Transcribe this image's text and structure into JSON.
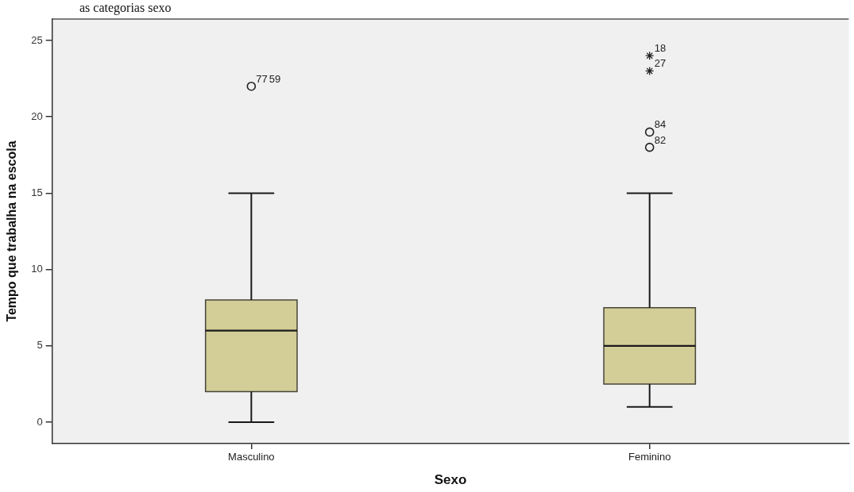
{
  "chart_data": {
    "type": "box",
    "title": "as categorias sexo",
    "xlabel": "Sexo",
    "ylabel": "Tempo que trabalha na escola",
    "categories": [
      "Masculino",
      "Feminino"
    ],
    "series": [
      {
        "color": "#d3cd97",
        "boxes": [
          {
            "low": 0,
            "q1": 2,
            "median": 6,
            "q3": 8,
            "high": 15
          },
          {
            "low": 1,
            "q1": 2.5,
            "median": 5,
            "q3": 7.5,
            "high": 15
          }
        ]
      },
      {
        "type": "scatter",
        "x": [
          "Masculino",
          "Feminino",
          "Feminino"
        ],
        "values": [
          22,
          19,
          18
        ],
        "marker": "circle",
        "color": "#222222"
      },
      {
        "type": "scatter",
        "x": [
          "Feminino",
          "Feminino"
        ],
        "values": [
          24,
          23
        ],
        "marker": "cross",
        "color": "#222222"
      }
    ],
    "ylim": [
      -1.4,
      26.4
    ],
    "yticks": [
      0,
      5,
      10,
      15,
      20,
      25
    ],
    "annotations": [
      {
        "text": "77",
        "x": "Masculino",
        "y": 22
      },
      {
        "text": "59",
        "x": "Masculino",
        "y": 22
      },
      {
        "text": "18",
        "x": "Feminino",
        "y": 24
      },
      {
        "text": "27",
        "x": "Feminino",
        "y": 23
      },
      {
        "text": "84",
        "x": "Feminino",
        "y": 19
      },
      {
        "text": "82",
        "x": "Feminino",
        "y": 18
      }
    ]
  }
}
